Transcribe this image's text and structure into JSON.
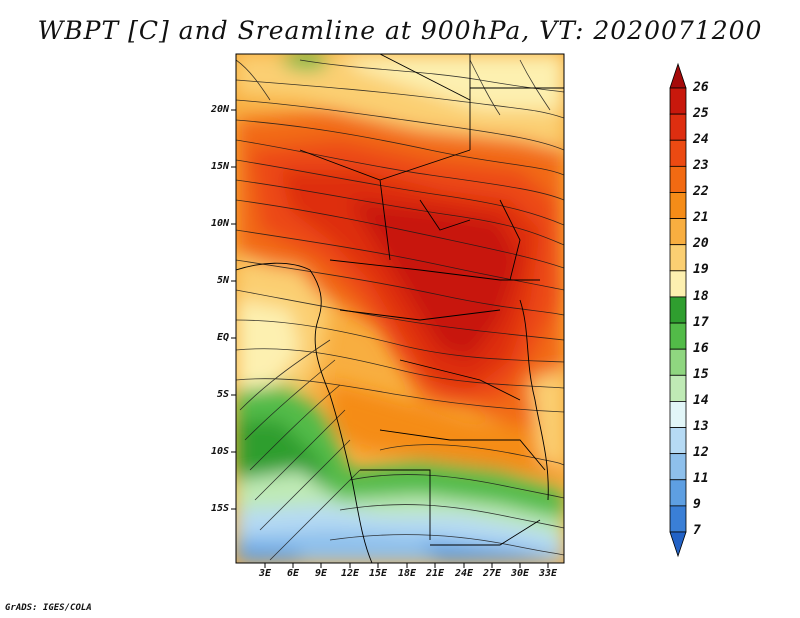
{
  "title": "WBPT [C] and Sreamline at 900hPa, VT: 2020071200",
  "footer": "GrADS: IGES/COLA",
  "map": {
    "y_axis_labels": [
      "20N",
      "15N",
      "10N",
      "5N",
      "EQ",
      "5S",
      "10S",
      "15S"
    ],
    "x_axis_labels": [
      "3E",
      "6E",
      "9E",
      "12E",
      "15E",
      "18E",
      "21E",
      "24E",
      "27E",
      "30E",
      "33E"
    ],
    "lon_range": [
      0,
      34.5
    ],
    "lat_range": [
      -20,
      24
    ]
  },
  "colorbar": {
    "labels": [
      "26",
      "25",
      "24",
      "23",
      "22",
      "21",
      "20",
      "19",
      "18",
      "17",
      "16",
      "15",
      "14",
      "13",
      "12",
      "11",
      "9",
      "7"
    ],
    "colors": [
      "#a50a0a",
      "#c8180c",
      "#de2e10",
      "#ec4a12",
      "#f26a12",
      "#f58c18",
      "#f8ae40",
      "#fbcf72",
      "#fdf0b0",
      "#2f9e2f",
      "#52bb48",
      "#8fd680",
      "#bfeab5",
      "#e2f6f8",
      "#b6daf4",
      "#8ec0ec",
      "#5e9fe2",
      "#3a7fd6",
      "#2262c6"
    ]
  }
}
